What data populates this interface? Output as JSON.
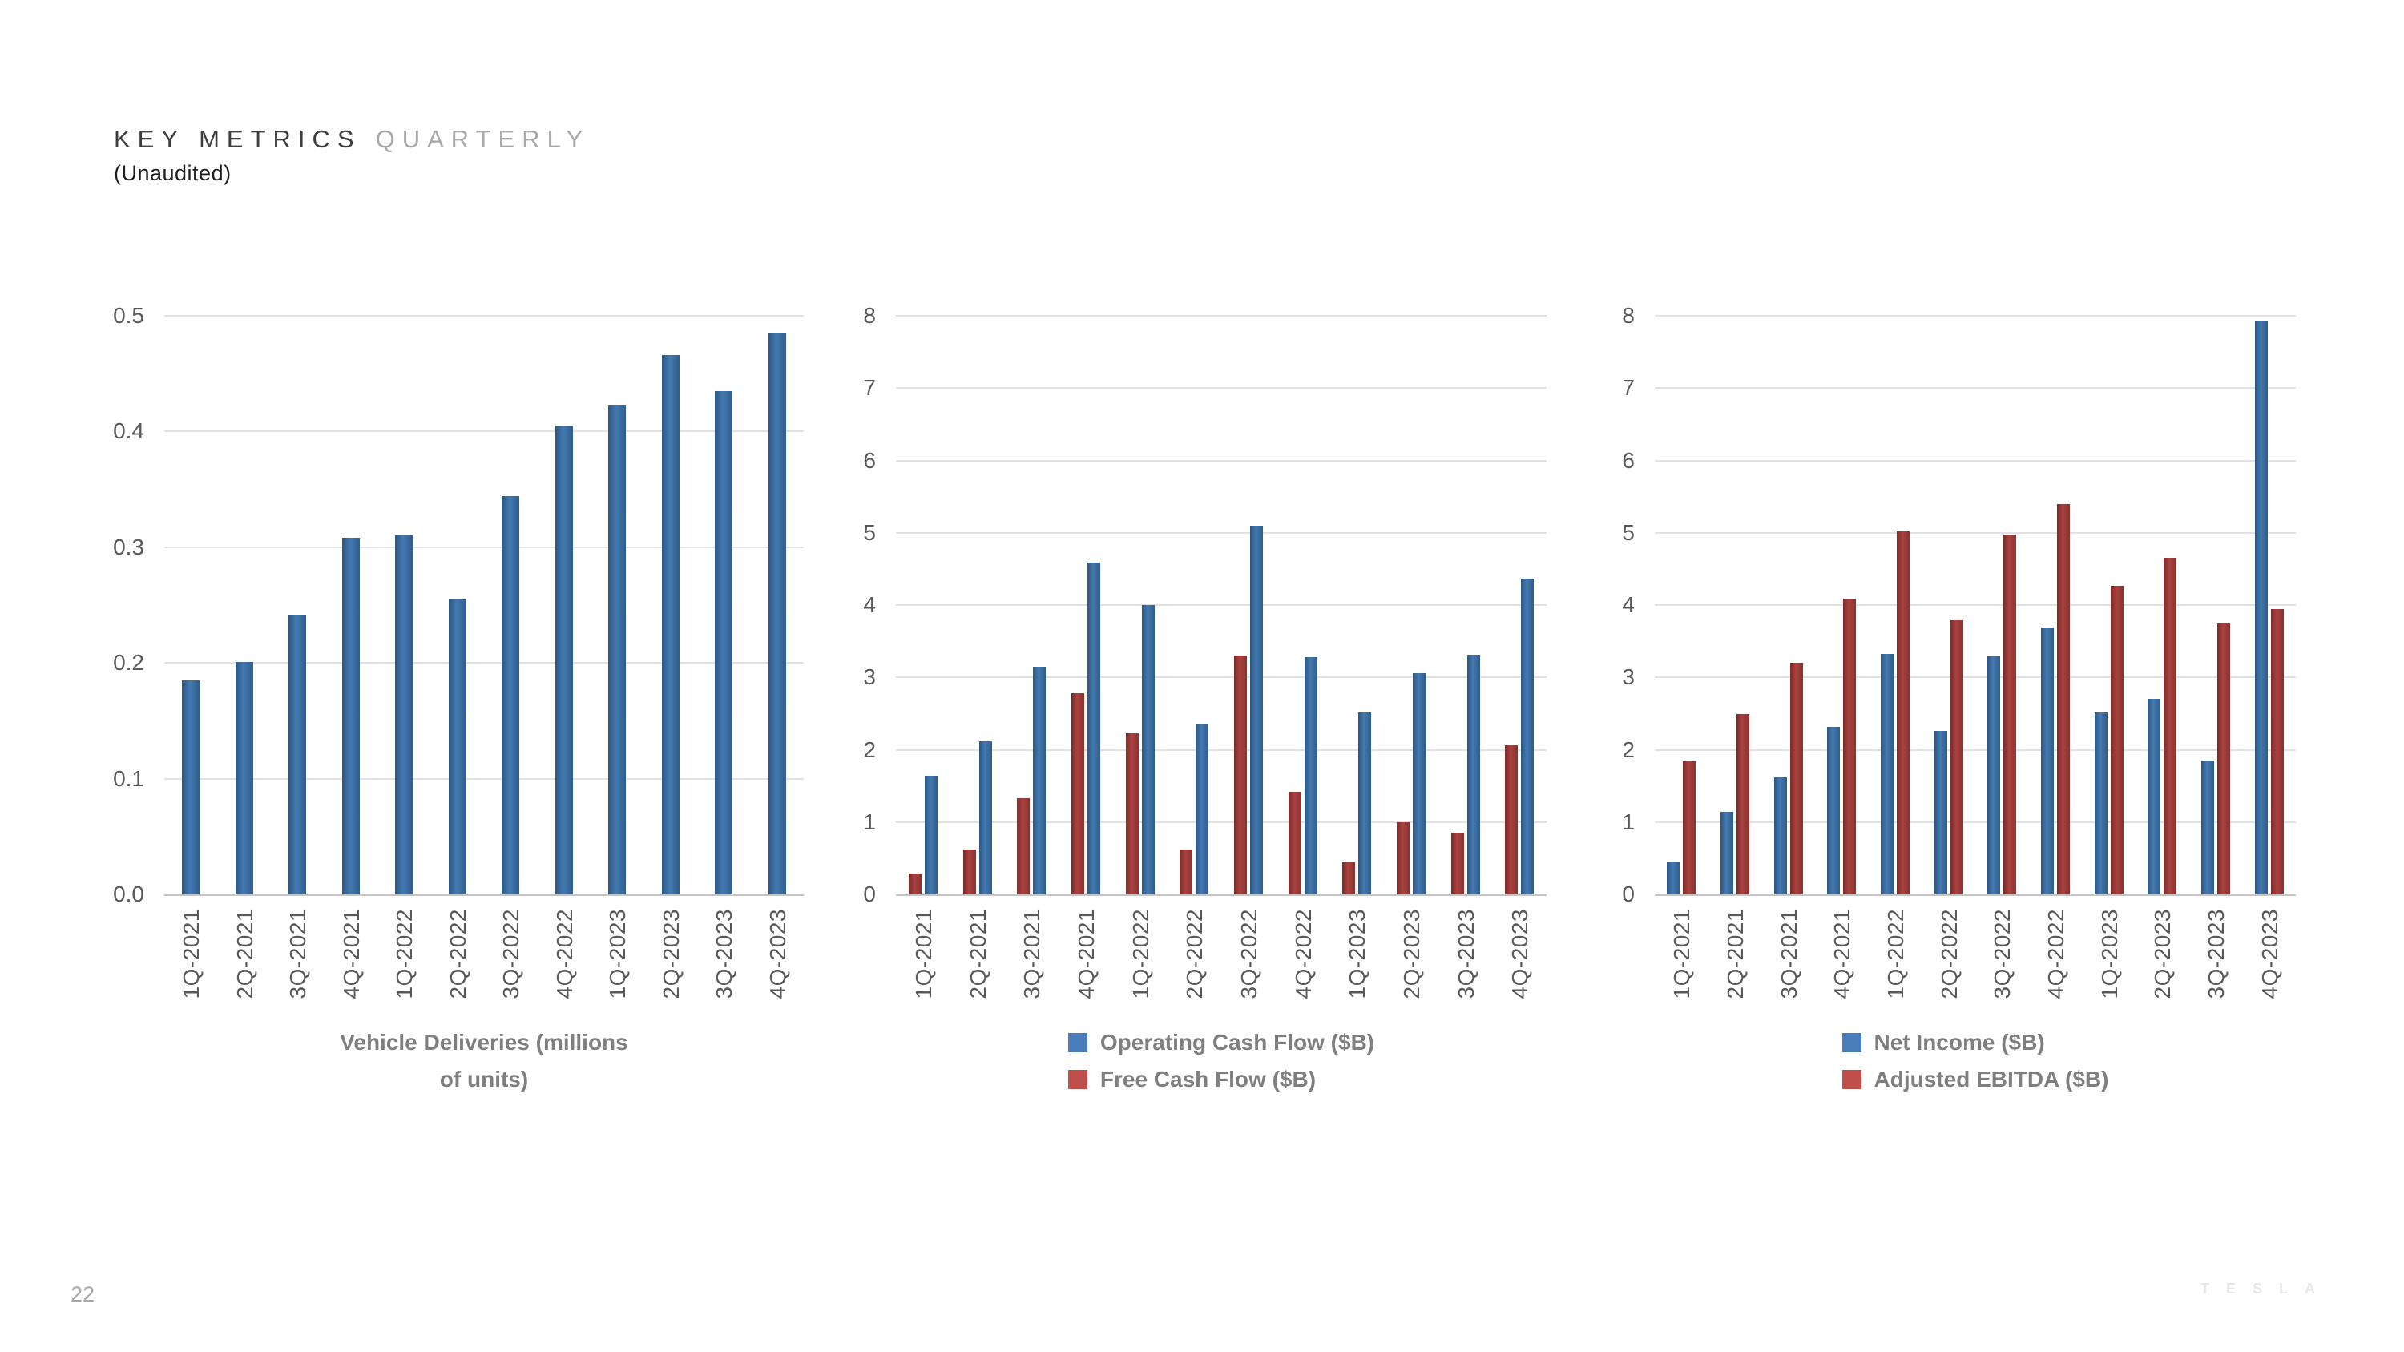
{
  "page": {
    "title_primary": "KEY METRICS",
    "title_secondary": "QUARTERLY",
    "subtitle": "(Unaudited)",
    "page_number": "22",
    "brand_wordmark": "TESLA"
  },
  "colors": {
    "blue_bar_start": "#2b5681",
    "blue_bar_mid": "#447ab0",
    "blue_bar_end": "#2f5c8d",
    "red_bar_start": "#7a2a28",
    "red_bar_mid": "#a8423f",
    "red_bar_end": "#8a312f",
    "blue_legend": "#4a7ebb",
    "red_legend": "#bf4f4b",
    "gridline": "#e2e2e2",
    "axis_line": "#c4c4c4",
    "tick_text": "#595959",
    "legend_text": "#7f7f7f"
  },
  "chart_data": [
    {
      "type": "bar",
      "title": "Vehicle Deliveries (millions of units)",
      "title_lines": [
        "Vehicle Deliveries (millions",
        "of units)"
      ],
      "categories": [
        "1Q-2021",
        "2Q-2021",
        "3Q-2021",
        "4Q-2021",
        "1Q-2022",
        "2Q-2022",
        "3Q-2022",
        "4Q-2022",
        "1Q-2023",
        "2Q-2023",
        "3Q-2023",
        "4Q-2023"
      ],
      "series": [
        {
          "name": "Vehicle Deliveries (millions of units)",
          "color": "blue",
          "values": [
            0.185,
            0.201,
            0.241,
            0.308,
            0.31,
            0.255,
            0.344,
            0.405,
            0.423,
            0.466,
            0.435,
            0.485
          ]
        }
      ],
      "y_ticks": [
        "0.0",
        "0.1",
        "0.2",
        "0.3",
        "0.4",
        "0.5"
      ],
      "ylim": [
        0,
        0.5
      ],
      "grid": true,
      "legend_position": "bottom-center-title"
    },
    {
      "type": "bar",
      "title": "",
      "categories": [
        "1Q-2021",
        "2Q-2021",
        "3Q-2021",
        "4Q-2021",
        "1Q-2022",
        "2Q-2022",
        "3Q-2022",
        "4Q-2022",
        "1Q-2023",
        "2Q-2023",
        "3Q-2023",
        "4Q-2023"
      ],
      "series": [
        {
          "name": "Free Cash Flow ($B)",
          "color": "red",
          "values": [
            0.29,
            0.62,
            1.33,
            2.78,
            2.23,
            0.62,
            3.3,
            1.42,
            0.44,
            1.0,
            0.85,
            2.06
          ]
        },
        {
          "name": "Operating Cash Flow ($B)",
          "color": "blue",
          "values": [
            1.64,
            2.12,
            3.15,
            4.59,
            4.0,
            2.35,
            5.1,
            3.28,
            2.51,
            3.06,
            3.31,
            4.37
          ]
        }
      ],
      "legend": [
        {
          "label": "Operating Cash Flow ($B)",
          "color": "blue"
        },
        {
          "label": "Free Cash Flow ($B)",
          "color": "red"
        }
      ],
      "y_ticks": [
        "0",
        "1",
        "2",
        "3",
        "4",
        "5",
        "6",
        "7",
        "8"
      ],
      "ylim": [
        0,
        8
      ],
      "grid": true,
      "legend_position": "bottom-center"
    },
    {
      "type": "bar",
      "title": "",
      "categories": [
        "1Q-2021",
        "2Q-2021",
        "3Q-2021",
        "4Q-2021",
        "1Q-2022",
        "2Q-2022",
        "3Q-2022",
        "4Q-2022",
        "1Q-2023",
        "2Q-2023",
        "3Q-2023",
        "4Q-2023"
      ],
      "series": [
        {
          "name": "Net Income ($B)",
          "color": "blue",
          "values": [
            0.44,
            1.14,
            1.62,
            2.32,
            3.32,
            2.26,
            3.29,
            3.69,
            2.51,
            2.7,
            1.85,
            7.93
          ]
        },
        {
          "name": "Adjusted EBITDA ($B)",
          "color": "red",
          "values": [
            1.84,
            2.49,
            3.2,
            4.09,
            5.02,
            3.79,
            4.97,
            5.4,
            4.27,
            4.65,
            3.76,
            3.95
          ]
        }
      ],
      "legend": [
        {
          "label": "Net Income ($B)",
          "color": "blue"
        },
        {
          "label": "Adjusted EBITDA ($B)",
          "color": "red"
        }
      ],
      "y_ticks": [
        "0",
        "1",
        "2",
        "3",
        "4",
        "5",
        "6",
        "7",
        "8"
      ],
      "ylim": [
        0,
        8
      ],
      "grid": true,
      "legend_position": "bottom-center"
    }
  ]
}
